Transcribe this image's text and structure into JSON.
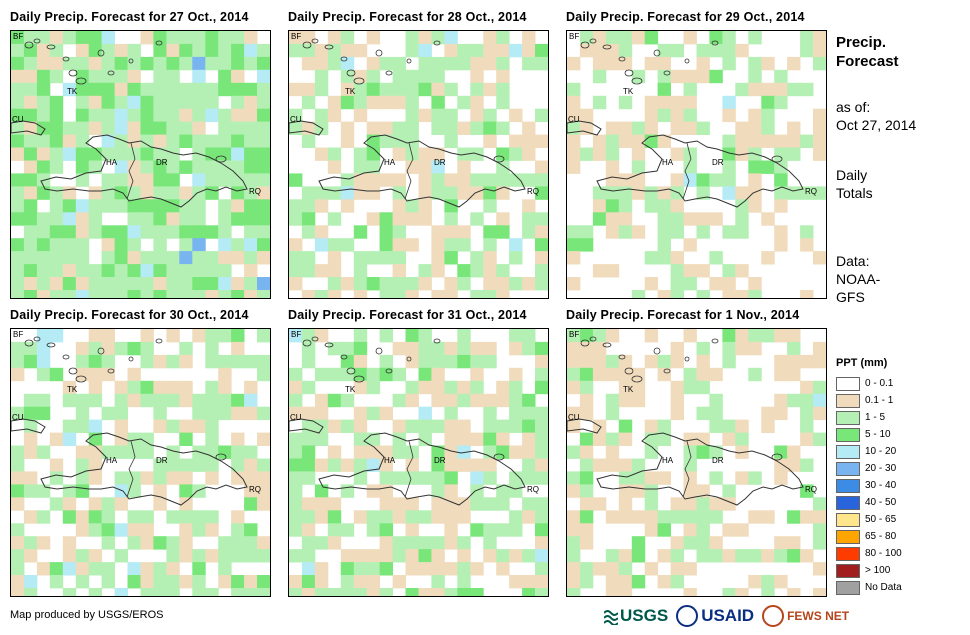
{
  "panels": [
    {
      "title": "Daily Precip. Forecast for 27 Oct., 2014",
      "pattern": "wet"
    },
    {
      "title": "Daily Precip. Forecast for 28 Oct., 2014",
      "pattern": "mixed"
    },
    {
      "title": "Daily Precip. Forecast for 29 Oct., 2014",
      "pattern": "dry"
    },
    {
      "title": "Daily Precip. Forecast for 30 Oct., 2014",
      "pattern": "mixed"
    },
    {
      "title": "Daily Precip. Forecast for 31 Oct., 2014",
      "pattern": "mixed"
    },
    {
      "title": "Daily Precip. Forecast for 1 Nov., 2014",
      "pattern": "dry"
    }
  ],
  "country_labels": {
    "bf": "BF",
    "tk": "TK",
    "cu": "CU",
    "ha": "HA",
    "dr": "DR",
    "rq": "RQ"
  },
  "side": {
    "title_line1": "Precip.",
    "title_line2": "Forecast",
    "asof_line1": "as of:",
    "asof_line2": "Oct 27, 2014",
    "totals_line1": "Daily",
    "totals_line2": "Totals",
    "data_line1": "Data:",
    "data_line2": "NOAA-",
    "data_line3": "GFS"
  },
  "legend": {
    "title": "PPT (mm)",
    "items": [
      {
        "label": "0 - 0.1",
        "color": "#ffffff"
      },
      {
        "label": "0.1 - 1",
        "color": "#f0dcbc"
      },
      {
        "label": "1 - 5",
        "color": "#b4f0b4"
      },
      {
        "label": "5 - 10",
        "color": "#78e678"
      },
      {
        "label": "10 - 20",
        "color": "#b4ebf5"
      },
      {
        "label": "20 - 30",
        "color": "#78b4f0"
      },
      {
        "label": "30 - 40",
        "color": "#3c8ce6"
      },
      {
        "label": "40 - 50",
        "color": "#2864dc"
      },
      {
        "label": "50 - 65",
        "color": "#ffe68c"
      },
      {
        "label": "65 - 80",
        "color": "#ffa500"
      },
      {
        "label": "80 - 100",
        "color": "#ff3c00"
      },
      {
        "label": "> 100",
        "color": "#a01e1e"
      },
      {
        "label": "No Data",
        "color": "#a0a0a0"
      }
    ]
  },
  "credit": "Map produced by USGS/EROS",
  "logos": {
    "usgs": "USGS",
    "usaid": "USAID",
    "fews": "FEWS NET"
  }
}
